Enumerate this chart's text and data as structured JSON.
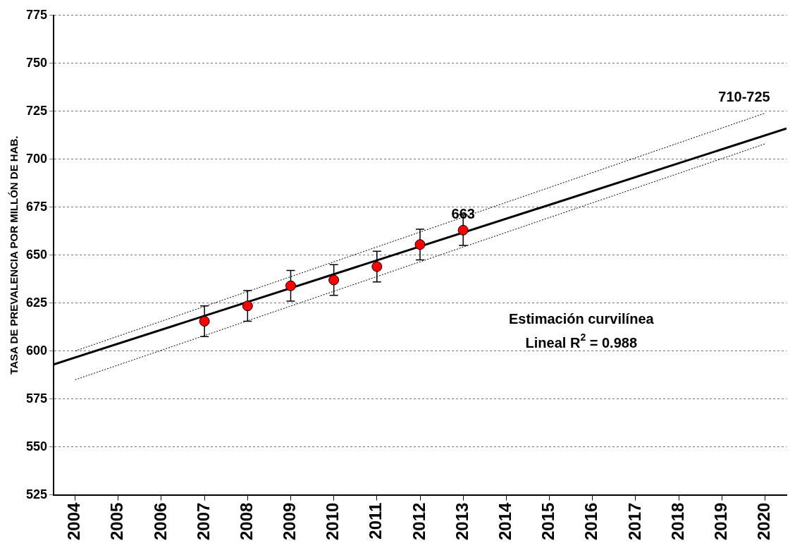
{
  "chart_data": {
    "type": "line",
    "ylabel": "TASA DE PREVALENCIA POR MILLÓN DE HAB.",
    "xlim": [
      2003.5,
      2020.5
    ],
    "xticks": [
      2004,
      2005,
      2006,
      2007,
      2008,
      2009,
      2010,
      2011,
      2012,
      2013,
      2014,
      2015,
      2016,
      2017,
      2018,
      2019,
      2020
    ],
    "ylim": [
      525,
      775
    ],
    "yticks": [
      525,
      550,
      575,
      600,
      625,
      650,
      675,
      700,
      725,
      750,
      775
    ],
    "grid": "y",
    "legend": false,
    "series": [
      {
        "color": "#000000",
        "line_style": "solid",
        "marker": "none",
        "x": [
          2003.5,
          2020.5
        ],
        "values": [
          593,
          716
        ]
      },
      {
        "type": "line",
        "color": "#000000",
        "line_style": "dotted",
        "marker": "none",
        "x": [
          2004,
          2020
        ],
        "values": [
          600,
          724
        ]
      },
      {
        "type": "line",
        "color": "#000000",
        "line_style": "dotted",
        "marker": "none",
        "x": [
          2004,
          2020
        ],
        "values": [
          585,
          708
        ]
      },
      {
        "type": "scatter",
        "color": "#ff0000",
        "marker": "circle",
        "x": [
          2007,
          2008,
          2009,
          2010,
          2011,
          2012,
          2013
        ],
        "values": [
          615.5,
          623.5,
          634,
          637,
          644,
          655.5,
          663
        ],
        "errors": [
          8,
          8,
          8,
          8,
          8,
          8,
          8
        ]
      }
    ],
    "annotations": [
      {
        "text": "663",
        "x": 2013,
        "y": 663
      },
      {
        "text": "710-725",
        "x": 2020,
        "y": 724
      },
      "Estimación curvilínea",
      "Lineal R$^{2}$ = 0.988"
    ]
  }
}
